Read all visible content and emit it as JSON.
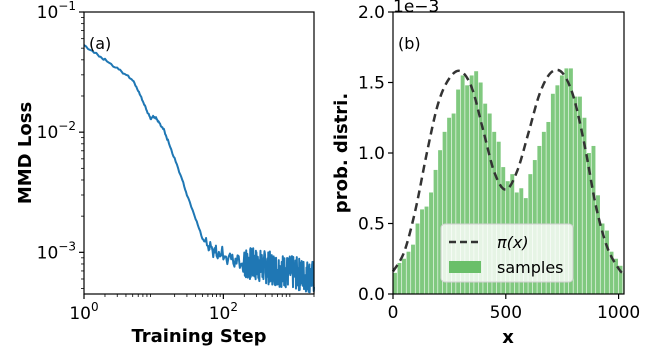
{
  "chart_data": [
    {
      "type": "line",
      "panel_label": "(a)",
      "title": "",
      "xlabel": "Training Step",
      "ylabel": "MMD Loss",
      "x_scale": "log",
      "y_scale": "log",
      "xlim": [
        1,
        2000
      ],
      "ylim": [
        0.00045,
        0.1
      ],
      "x_ticks": [
        {
          "base": "10",
          "exp": "0",
          "value": 1
        },
        {
          "base": "10",
          "exp": "2",
          "value": 100
        }
      ],
      "y_ticks": [
        {
          "base": "10",
          "exp": "−3",
          "value": 0.001
        },
        {
          "base": "10",
          "exp": "−2",
          "value": 0.01
        },
        {
          "base": "10",
          "exp": "−1",
          "value": 0.1
        }
      ],
      "series": [
        {
          "color": "#1f77b4",
          "x": [
            1,
            1.5,
            2,
            3,
            4,
            5,
            6,
            7,
            8,
            9,
            10,
            11,
            12,
            14,
            16,
            20,
            25,
            30,
            40,
            50,
            60,
            70,
            80,
            100,
            130,
            160,
            200,
            300,
            400,
            500,
            700,
            1000,
            1400,
            2000
          ],
          "y": [
            0.053,
            0.045,
            0.04,
            0.034,
            0.03,
            0.027,
            0.022,
            0.018,
            0.015,
            0.013,
            0.0135,
            0.013,
            0.012,
            0.0105,
            0.0085,
            0.006,
            0.0042,
            0.003,
            0.0019,
            0.0013,
            0.00113,
            0.00106,
            0.00102,
            0.00097,
            0.00091,
            0.00086,
            0.00082,
            0.00077,
            0.00072,
            0.00069,
            0.00066,
            0.00064,
            0.00063,
            0.00062
          ]
        }
      ]
    },
    {
      "type": "bar+line",
      "panel_label": "(b)",
      "title": "",
      "xlabel": "x",
      "ylabel": "prob. distri.",
      "y_offset_text": "1e−3",
      "xlim": [
        0,
        1024
      ],
      "ylim": [
        0,
        2.0
      ],
      "x_ticks": [
        "0",
        "500",
        "1000"
      ],
      "y_ticks": [
        "0.0",
        "0.5",
        "1.0",
        "1.5",
        "2.0"
      ],
      "legend": {
        "position": "lower center",
        "entries": [
          "π(x)",
          "samples"
        ]
      },
      "pdf_line": {
        "label": "π(x)",
        "style": "dashed",
        "color": "#333333",
        "x": [
          0,
          50,
          100,
          150,
          200,
          250,
          300,
          350,
          400,
          450,
          500,
          550,
          600,
          650,
          700,
          750,
          800,
          850,
          900,
          950,
          1000,
          1024
        ],
        "y": [
          0.16,
          0.3,
          0.6,
          1.0,
          1.35,
          1.53,
          1.58,
          1.46,
          1.16,
          0.86,
          0.74,
          0.87,
          1.14,
          1.42,
          1.57,
          1.57,
          1.4,
          1.05,
          0.62,
          0.33,
          0.18,
          0.14
        ]
      },
      "histogram": {
        "label": "samples",
        "color": "#6abf69",
        "bin_edges_start": 0,
        "bin_width": 20,
        "values": [
          0.15,
          0.22,
          0.25,
          0.3,
          0.35,
          0.5,
          0.6,
          0.62,
          0.72,
          0.88,
          1.02,
          1.15,
          1.25,
          1.28,
          1.45,
          1.55,
          1.48,
          1.55,
          1.58,
          1.5,
          1.35,
          1.28,
          1.15,
          1.08,
          0.9,
          0.8,
          0.85,
          0.72,
          0.75,
          0.68,
          0.85,
          0.95,
          1.05,
          1.15,
          1.22,
          1.42,
          1.48,
          1.55,
          1.6,
          1.6,
          1.4,
          1.4,
          1.25,
          1.0,
          1.05,
          0.7,
          0.5,
          0.45,
          0.3,
          0.25,
          0.2,
          0.15
        ]
      }
    }
  ]
}
